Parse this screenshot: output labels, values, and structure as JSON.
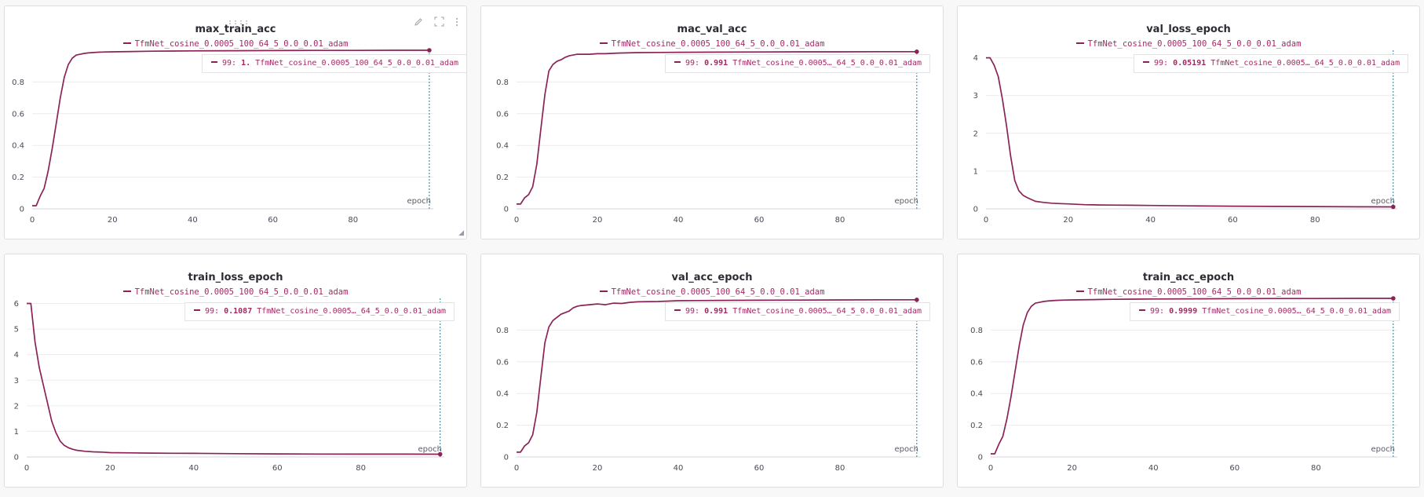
{
  "colors": {
    "series": "#8b2358",
    "legend_text": "#a22a63",
    "grid": "#ececf0",
    "crosshair": "#2c7c90"
  },
  "panel_tools": {
    "grip_label": "::::",
    "edit_icon": "pencil-icon",
    "fullscreen_icon": "expand-icon",
    "menu_icon": "more-vertical-icon"
  },
  "panels": [
    {
      "title": "max_train_acc",
      "legend": "TfmNet_cosine_0.0005_100_64_5_0.0_0.01_adam",
      "tooltip": {
        "step": "99:",
        "value": "1.",
        "name": "TfmNet_cosine_0.0005_100_64_5_0.0_0.01_adam"
      }
    },
    {
      "title": "mac_val_acc",
      "legend": "TfmNet_cosine_0.0005_100_64_5_0.0_0.01_adam",
      "tooltip": {
        "step": "99:",
        "value": "0.991",
        "name": "TfmNet_cosine_0.0005…_64_5_0.0_0.01_adam"
      }
    },
    {
      "title": "val_loss_epoch",
      "legend": "TfmNet_cosine_0.0005_100_64_5_0.0_0.01_adam",
      "tooltip": {
        "step": "99:",
        "value": "0.05191",
        "name": "TfmNet_cosine_0.0005…_64_5_0.0_0.01_adam"
      }
    },
    {
      "title": "train_loss_epoch",
      "legend": "TfmNet_cosine_0.0005_100_64_5_0.0_0.01_adam",
      "tooltip": {
        "step": "99:",
        "value": "0.1087",
        "name": "TfmNet_cosine_0.0005…_64_5_0.0_0.01_adam"
      }
    },
    {
      "title": "val_acc_epoch",
      "legend": "TfmNet_cosine_0.0005_100_64_5_0.0_0.01_adam",
      "tooltip": {
        "step": "99:",
        "value": "0.991",
        "name": "TfmNet_cosine_0.0005…_64_5_0.0_0.01_adam"
      }
    },
    {
      "title": "train_acc_epoch",
      "legend": "TfmNet_cosine_0.0005_100_64_5_0.0_0.01_adam",
      "tooltip": {
        "step": "99:",
        "value": "0.9999",
        "name": "TfmNet_cosine_0.0005…_64_5_0.0_0.01_adam"
      }
    }
  ],
  "chart_data": [
    {
      "type": "line",
      "title": "max_train_acc",
      "xlabel": "epoch",
      "ylabel": "",
      "xlim": [
        0,
        100
      ],
      "ylim": [
        0,
        1
      ],
      "xticks": [
        0,
        20,
        40,
        60,
        80
      ],
      "yticks": [
        0,
        0.2,
        0.4,
        0.6,
        0.8
      ],
      "series": [
        {
          "name": "TfmNet_cosine_0.0005_100_64_5_0.0_0.01_adam",
          "x": [
            0,
            1,
            2,
            3,
            4,
            5,
            6,
            7,
            8,
            9,
            10,
            11,
            12,
            13,
            14,
            15,
            16,
            18,
            20,
            25,
            30,
            35,
            40,
            50,
            60,
            70,
            80,
            90,
            99
          ],
          "y": [
            0.02,
            0.02,
            0.08,
            0.13,
            0.24,
            0.38,
            0.54,
            0.7,
            0.83,
            0.91,
            0.95,
            0.97,
            0.975,
            0.98,
            0.983,
            0.985,
            0.987,
            0.989,
            0.99,
            0.992,
            0.994,
            0.995,
            0.996,
            0.997,
            0.998,
            0.999,
            0.999,
            1.0,
            1.0
          ]
        }
      ],
      "hover": {
        "x": 99,
        "y": 1.0
      },
      "grid": true,
      "legend": "top-center"
    },
    {
      "type": "line",
      "title": "mac_val_acc",
      "xlabel": "epoch",
      "ylabel": "",
      "xlim": [
        0,
        100
      ],
      "ylim": [
        0,
        1
      ],
      "xticks": [
        0,
        20,
        40,
        60,
        80
      ],
      "yticks": [
        0,
        0.2,
        0.4,
        0.6,
        0.8
      ],
      "series": [
        {
          "name": "TfmNet_cosine_0.0005_100_64_5_0.0_0.01_adam",
          "x": [
            0,
            1,
            2,
            3,
            4,
            5,
            6,
            7,
            8,
            9,
            10,
            11,
            12,
            13,
            14,
            15,
            16,
            18,
            20,
            22,
            25,
            30,
            35,
            40,
            50,
            60,
            70,
            80,
            90,
            99
          ],
          "y": [
            0.03,
            0.03,
            0.07,
            0.09,
            0.14,
            0.28,
            0.5,
            0.72,
            0.87,
            0.91,
            0.93,
            0.94,
            0.955,
            0.965,
            0.97,
            0.975,
            0.975,
            0.975,
            0.978,
            0.978,
            0.982,
            0.985,
            0.986,
            0.987,
            0.988,
            0.989,
            0.99,
            0.99,
            0.991,
            0.991
          ]
        }
      ],
      "hover": {
        "x": 99,
        "y": 0.991
      },
      "grid": true,
      "legend": "top-center"
    },
    {
      "type": "line",
      "title": "val_loss_epoch",
      "xlabel": "epoch",
      "ylabel": "",
      "xlim": [
        0,
        100
      ],
      "ylim": [
        0,
        4.2
      ],
      "xticks": [
        0,
        20,
        40,
        60,
        80
      ],
      "yticks": [
        0,
        1,
        2,
        3,
        4
      ],
      "series": [
        {
          "name": "TfmNet_cosine_0.0005_100_64_5_0.0_0.01_adam",
          "x": [
            0,
            1,
            2,
            3,
            4,
            5,
            6,
            7,
            8,
            9,
            10,
            11,
            12,
            14,
            16,
            18,
            20,
            22,
            24,
            26,
            30,
            35,
            40,
            50,
            60,
            70,
            80,
            90,
            99
          ],
          "y": [
            4.0,
            4.0,
            3.8,
            3.5,
            2.9,
            2.2,
            1.4,
            0.75,
            0.48,
            0.36,
            0.3,
            0.25,
            0.2,
            0.17,
            0.15,
            0.14,
            0.13,
            0.12,
            0.11,
            0.105,
            0.1,
            0.095,
            0.09,
            0.08,
            0.07,
            0.065,
            0.06,
            0.055,
            0.05191
          ]
        }
      ],
      "hover": {
        "x": 99,
        "y": 0.05191
      },
      "grid": true,
      "legend": "top-center"
    },
    {
      "type": "line",
      "title": "train_loss_epoch",
      "xlabel": "epoch",
      "ylabel": "",
      "xlim": [
        0,
        100
      ],
      "ylim": [
        0,
        6.2
      ],
      "xticks": [
        0,
        20,
        40,
        60,
        80
      ],
      "yticks": [
        0,
        1,
        2,
        3,
        4,
        5,
        6
      ],
      "series": [
        {
          "name": "TfmNet_cosine_0.0005_100_64_5_0.0_0.01_adam",
          "x": [
            0,
            1,
            2,
            3,
            4,
            5,
            6,
            7,
            8,
            9,
            10,
            11,
            12,
            14,
            16,
            18,
            20,
            25,
            30,
            35,
            40,
            50,
            60,
            70,
            80,
            90,
            99
          ],
          "y": [
            6.0,
            6.0,
            4.5,
            3.5,
            2.8,
            2.1,
            1.4,
            0.95,
            0.62,
            0.45,
            0.36,
            0.3,
            0.26,
            0.22,
            0.2,
            0.19,
            0.17,
            0.16,
            0.15,
            0.145,
            0.14,
            0.13,
            0.12,
            0.115,
            0.11,
            0.11,
            0.1087
          ]
        }
      ],
      "hover": {
        "x": 99,
        "y": 0.1087
      },
      "grid": true,
      "legend": "top-center"
    },
    {
      "type": "line",
      "title": "val_acc_epoch",
      "xlabel": "epoch",
      "ylabel": "",
      "xlim": [
        0,
        100
      ],
      "ylim": [
        0,
        1
      ],
      "xticks": [
        0,
        20,
        40,
        60,
        80
      ],
      "yticks": [
        0,
        0.2,
        0.4,
        0.6,
        0.8
      ],
      "series": [
        {
          "name": "TfmNet_cosine_0.0005_100_64_5_0.0_0.01_adam",
          "x": [
            0,
            1,
            2,
            3,
            4,
            5,
            6,
            7,
            8,
            9,
            10,
            11,
            12,
            13,
            14,
            15,
            16,
            18,
            20,
            22,
            24,
            26,
            28,
            30,
            35,
            40,
            50,
            60,
            70,
            80,
            90,
            99
          ],
          "y": [
            0.03,
            0.03,
            0.07,
            0.09,
            0.14,
            0.28,
            0.5,
            0.72,
            0.82,
            0.86,
            0.88,
            0.9,
            0.91,
            0.92,
            0.94,
            0.95,
            0.955,
            0.96,
            0.965,
            0.96,
            0.97,
            0.968,
            0.975,
            0.978,
            0.98,
            0.985,
            0.987,
            0.988,
            0.989,
            0.99,
            0.991,
            0.991
          ]
        }
      ],
      "hover": {
        "x": 99,
        "y": 0.991
      },
      "grid": true,
      "legend": "top-center"
    },
    {
      "type": "line",
      "title": "train_acc_epoch",
      "xlabel": "epoch",
      "ylabel": "",
      "xlim": [
        0,
        100
      ],
      "ylim": [
        0,
        1
      ],
      "xticks": [
        0,
        20,
        40,
        60,
        80
      ],
      "yticks": [
        0,
        0.2,
        0.4,
        0.6,
        0.8
      ],
      "series": [
        {
          "name": "TfmNet_cosine_0.0005_100_64_5_0.0_0.01_adam",
          "x": [
            0,
            1,
            2,
            3,
            4,
            5,
            6,
            7,
            8,
            9,
            10,
            11,
            12,
            13,
            14,
            15,
            16,
            18,
            20,
            25,
            30,
            35,
            40,
            50,
            60,
            70,
            80,
            90,
            99
          ],
          "y": [
            0.02,
            0.02,
            0.08,
            0.13,
            0.24,
            0.38,
            0.54,
            0.7,
            0.83,
            0.91,
            0.95,
            0.97,
            0.975,
            0.98,
            0.983,
            0.985,
            0.987,
            0.989,
            0.99,
            0.992,
            0.994,
            0.995,
            0.996,
            0.997,
            0.998,
            0.999,
            0.999,
            0.9999,
            0.9999
          ]
        }
      ],
      "hover": {
        "x": 99,
        "y": 0.9999
      },
      "grid": true,
      "legend": "top-center"
    }
  ]
}
